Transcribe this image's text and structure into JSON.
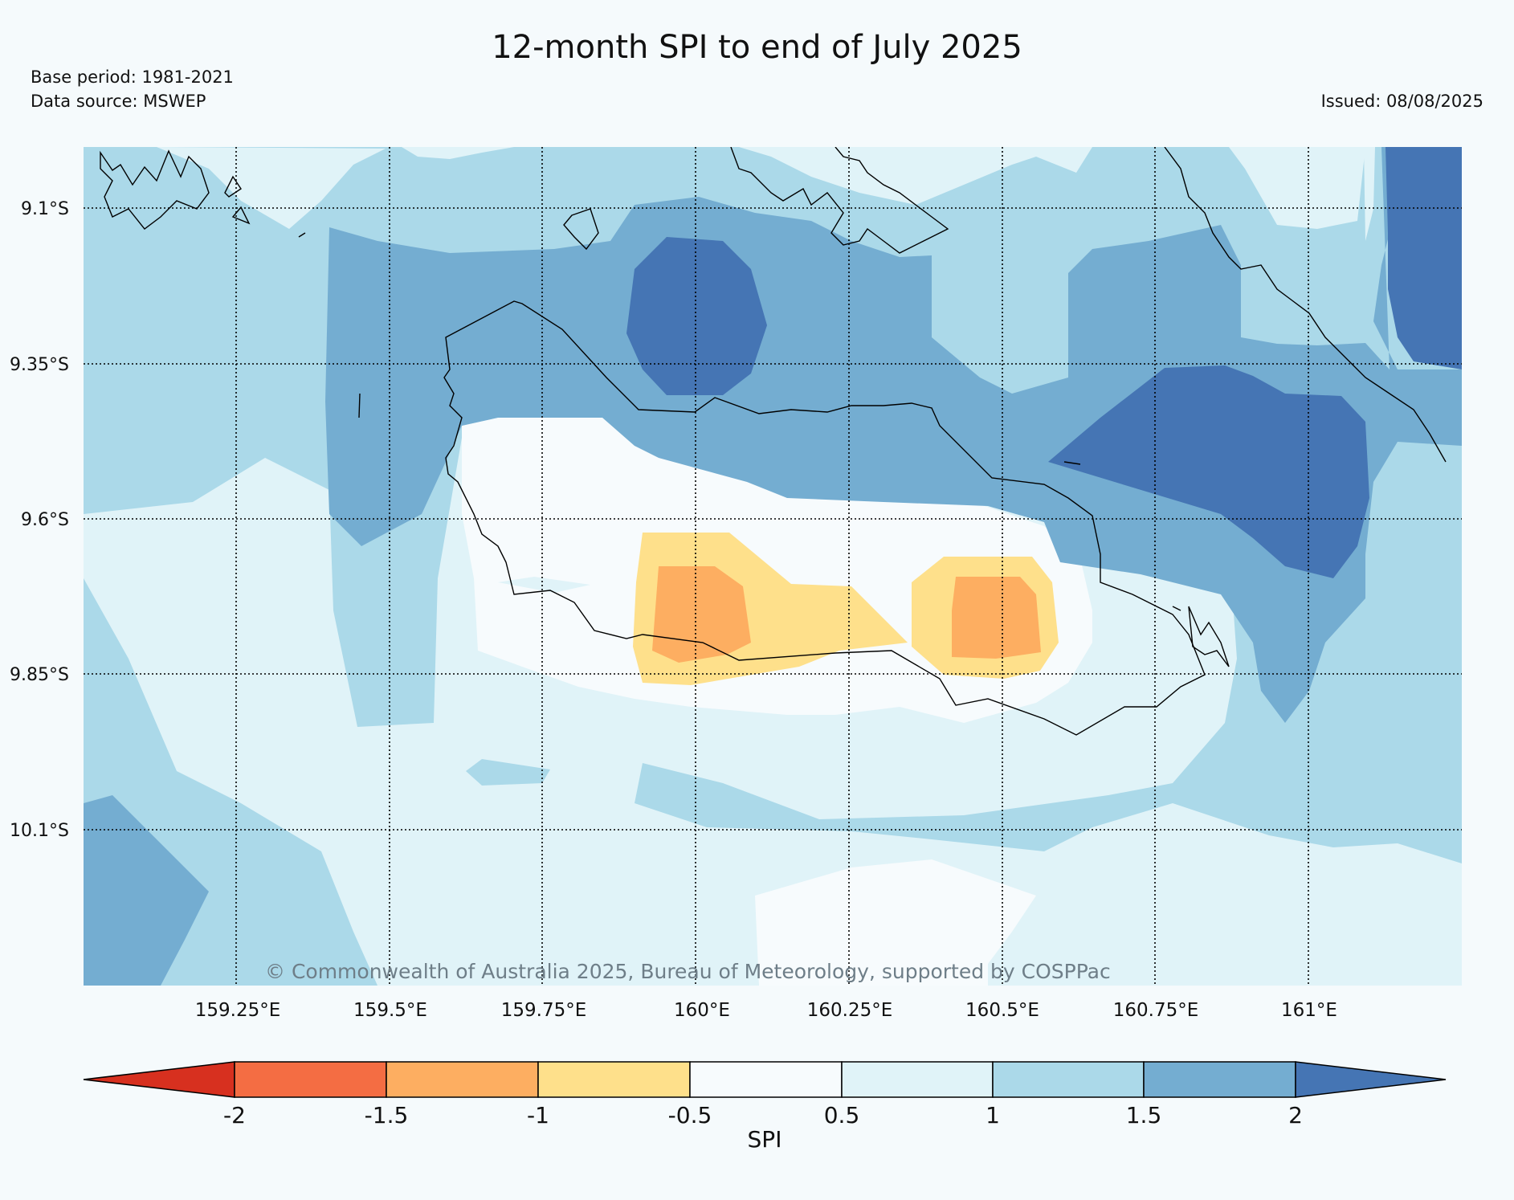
{
  "header": {
    "title": "12-month SPI to end of July 2025",
    "base_period": "Base period: 1981-2021",
    "data_source": "Data source: MSWEP",
    "issued": "Issued: 08/08/2025"
  },
  "map": {
    "lat_labels": [
      "9.1°S",
      "9.35°S",
      "9.6°S",
      "9.85°S",
      "10.1°S"
    ],
    "lon_labels": [
      "159.25°E",
      "159.5°E",
      "159.75°E",
      "160°E",
      "160.25°E",
      "160.5°E",
      "160.75°E",
      "161°E"
    ],
    "copyright": "© Commonwealth of Australia 2025, Bureau of Meteorology, supported by COSPPac"
  },
  "colorbar": {
    "label": "SPI",
    "ticks": [
      "-2",
      "-1.5",
      "-1",
      "-0.5",
      "0.5",
      "1",
      "1.5",
      "2"
    ],
    "colors": {
      "below_-2": "#d7301f",
      "-2_to_-1.5": "#f46d43",
      "-1.5_to_-1": "#fdae61",
      "-1_to_-0.5": "#fee08b",
      "-0.5_to_0.5": "#f7fbfd",
      "0.5_to_1": "#e0f3f8",
      "1_to_1.5": "#abd9e9",
      "1.5_to_2": "#74add1",
      "above_2": "#4575b4"
    }
  }
}
